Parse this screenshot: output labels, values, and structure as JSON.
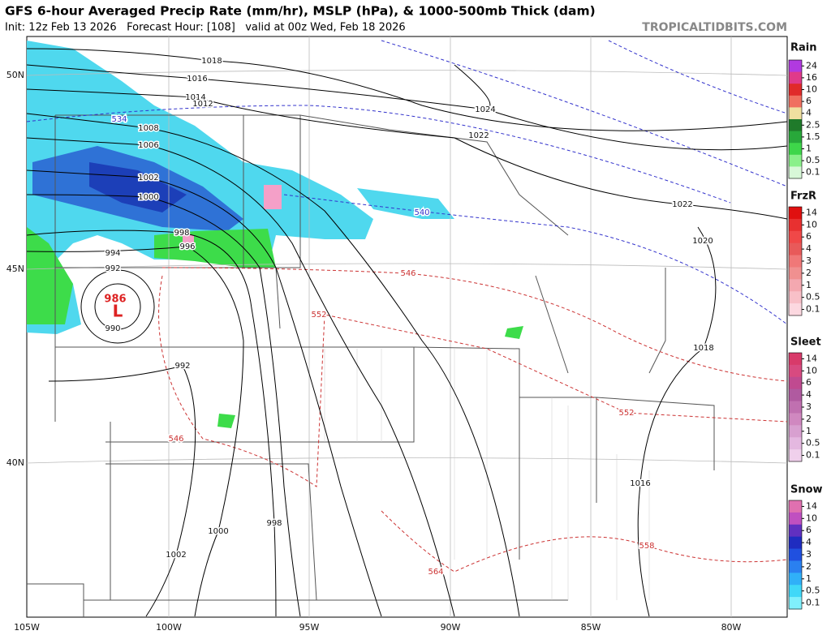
{
  "header": {
    "title": "GFS 6-hour Averaged Precip Rate (mm/hr), MSLP (hPa), & 1000-500mb Thick (dam)",
    "subtitle": "Init: 12z Feb 13 2026   Forecast Hour: [108]   valid at 00z Wed, Feb 18 2026",
    "site": "TROPICALTIDBITS.COM"
  },
  "map": {
    "lon_labels": [
      "105W",
      "100W",
      "95W",
      "90W",
      "85W",
      "80W"
    ],
    "lat_labels": [
      "50N",
      "45N",
      "40N"
    ],
    "isobar_labels": [
      "1018",
      "1016",
      "1014",
      "1012",
      "1008",
      "1006",
      "1002",
      "1000",
      "998",
      "996",
      "994",
      "992",
      "986",
      "L",
      "990",
      "992",
      "998",
      "1000",
      "1002",
      "1024",
      "1022",
      "1022",
      "1020",
      "1018",
      "1016"
    ],
    "thickness_labels": [
      "534",
      "540",
      "546",
      "552",
      "546",
      "552",
      "558",
      "564"
    ]
  },
  "legends": [
    {
      "title": "Rain",
      "ticks": [
        24,
        16,
        10,
        6,
        4,
        2.5,
        1.5,
        1,
        0.5,
        0.1
      ]
    },
    {
      "title": "FrzR",
      "ticks": [
        14,
        10,
        6,
        4,
        3,
        2,
        1,
        0.5,
        0.1
      ]
    },
    {
      "title": "Sleet",
      "ticks": [
        14,
        10,
        6,
        4,
        3,
        2,
        1,
        0.5,
        0.1
      ]
    },
    {
      "title": "Snow",
      "ticks": [
        14,
        10,
        6,
        4,
        3,
        2,
        1,
        0.5,
        0.1
      ]
    }
  ]
}
